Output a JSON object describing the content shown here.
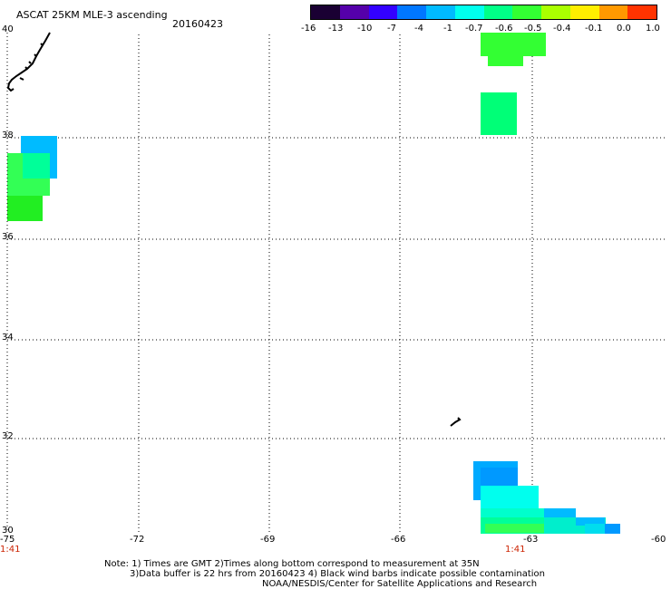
{
  "header": {
    "title": "ASCAT 25KM MLE-3 ascending",
    "date": "20160423"
  },
  "colorbar": {
    "labels": [
      "-16",
      "-13",
      "-10",
      "-7",
      "-4",
      "-1",
      "-0.7",
      "-0.6",
      "-0.5",
      "-0.4",
      "-0.1",
      "0.0",
      "1.0"
    ],
    "colors": [
      "#1a0033",
      "#5500aa",
      "#3300ff",
      "#0077ff",
      "#00bbff",
      "#00ffee",
      "#00ff88",
      "#33ff33",
      "#aaff00",
      "#ffee00",
      "#ff9900",
      "#ff3300"
    ]
  },
  "axes": {
    "y_labels": [
      "40",
      "38",
      "36",
      "34",
      "32",
      "30"
    ],
    "x_labels": [
      "-75",
      "-72",
      "-69",
      "-66",
      "-63",
      "-60"
    ],
    "time_labels": [
      "1:41",
      "1:41"
    ]
  },
  "footer": {
    "note_line1": "Note: 1) Times are GMT 2)Times along bottom correspond to measurement at 35N",
    "note_line2": "3)Data buffer is 22 hrs from 20160423 4) Black wind barbs indicate possible contamination",
    "credit": "NOAA/NESDIS/Center for Satellite Applications and Research"
  }
}
